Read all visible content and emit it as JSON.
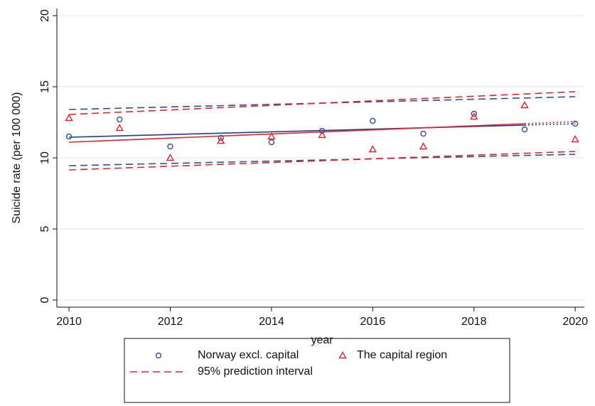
{
  "chart_data": {
    "type": "scatter",
    "x_label": "year",
    "y_label": "Suicide rate (per 100 000)",
    "x": [
      2010,
      2011,
      2012,
      2013,
      2014,
      2015,
      2016,
      2017,
      2018,
      2019,
      2020
    ],
    "series": [
      {
        "name": "Norway excl. capital",
        "color": "#2f4f9e",
        "marker": "circle",
        "values": [
          11.5,
          12.7,
          10.8,
          11.4,
          11.1,
          11.9,
          12.6,
          11.7,
          13.1,
          12.0,
          12.4
        ]
      },
      {
        "name": "The capital region",
        "color": "#e3242b",
        "marker": "triangle",
        "values": [
          12.8,
          12.1,
          10.0,
          11.2,
          11.5,
          11.6,
          10.6,
          10.8,
          12.9,
          13.7,
          11.3
        ]
      }
    ],
    "fits": [
      {
        "color": "#1f3f8f",
        "dash": "solid",
        "x": [
          2010,
          2019
        ],
        "values": [
          11.45,
          12.3
        ]
      },
      {
        "color": "#1f3f8f",
        "dash": "dotted",
        "x": [
          2019,
          2020
        ],
        "values": [
          12.3,
          12.4
        ]
      },
      {
        "color": "#e3242b",
        "dash": "solid",
        "x": [
          2010,
          2019
        ],
        "values": [
          11.1,
          12.4
        ]
      },
      {
        "color": "#e3242b",
        "dash": "dotted",
        "x": [
          2019,
          2020
        ],
        "values": [
          12.4,
          12.55
        ]
      }
    ],
    "intervals": {
      "name": "95% prediction interval",
      "color": "#e3242b",
      "dash": "dashed",
      "lines": [
        {
          "color": "#2f4f9e",
          "x": [
            2010,
            2020
          ],
          "values": [
            13.4,
            14.3
          ]
        },
        {
          "color": "#2f4f9e",
          "x": [
            2010,
            2020
          ],
          "values": [
            9.45,
            10.25
          ]
        },
        {
          "color": "#e3242b",
          "x": [
            2010,
            2020
          ],
          "values": [
            13.05,
            14.65
          ]
        },
        {
          "color": "#e3242b",
          "x": [
            2010,
            2020
          ],
          "values": [
            9.15,
            10.45
          ]
        }
      ]
    },
    "xlim": [
      2009.76,
      2020.18
    ],
    "ylim": [
      -0.5,
      20.5
    ],
    "xticks": [
      2010,
      2012,
      2014,
      2016,
      2018,
      2020
    ],
    "yticks": [
      0,
      5,
      10,
      15,
      20
    ],
    "grid": true
  }
}
